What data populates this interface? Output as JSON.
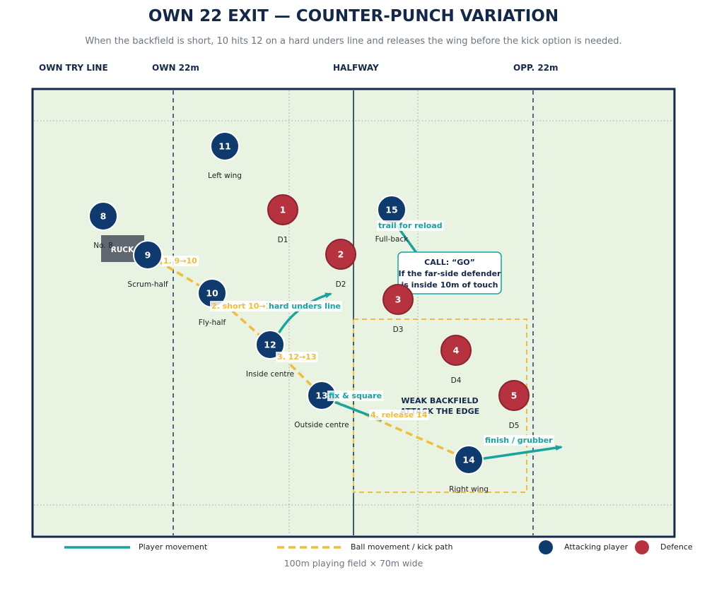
{
  "title": "OWN 22 EXIT — COUNTER-PUNCH VARIATION",
  "subtitle": "When the backfield is short, 10 hits 12 on a hard unders line and releases the wing before the kick option is needed.",
  "zones": {
    "own_try_line": "OWN TRY LINE",
    "own_22": "OWN 22m",
    "halfway": "HALFWAY",
    "opp_22": "OPP. 22m"
  },
  "ruck_label": "RUCK",
  "attackers": [
    {
      "number": "8",
      "role": "No. 8"
    },
    {
      "number": "9",
      "role": "Scrum-half"
    },
    {
      "number": "10",
      "role": "Fly-half"
    },
    {
      "number": "11",
      "role": "Left wing"
    },
    {
      "number": "12",
      "role": "Inside centre"
    },
    {
      "number": "13",
      "role": "Outside centre"
    },
    {
      "number": "14",
      "role": "Right wing"
    },
    {
      "number": "15",
      "role": "Full-back"
    }
  ],
  "defenders": [
    {
      "number": "1",
      "label": "D1"
    },
    {
      "number": "2",
      "label": "D2"
    },
    {
      "number": "3",
      "label": "D3"
    },
    {
      "number": "4",
      "label": "D4"
    },
    {
      "number": "5",
      "label": "D5"
    }
  ],
  "ball_steps": [
    "1. 9→10",
    "2. short 10→12",
    "3. 12→13",
    "4. release 14"
  ],
  "run_labels": {
    "trail": "trail for reload",
    "unders": "hard unders line",
    "fix": "fix & square",
    "finish": "finish / grubber"
  },
  "call_box": {
    "line1": "CALL: “GO”",
    "line2": "If the far-side defender",
    "line3": "is inside 10m of touch"
  },
  "target_zone": {
    "line1": "WEAK BACKFIELD",
    "line2": "ATTACK THE EDGE"
  },
  "legend": {
    "player_movement": "Player movement",
    "ball_movement": "Ball movement / kick path",
    "attacking_player": "Attacking player",
    "defence": "Defence"
  },
  "footnote": "100m playing field × 70m wide",
  "colors": {
    "attack": "#0f3a6e",
    "defence": "#b5323e",
    "movement": "#17a3a0",
    "ball": "#f0bd3c",
    "field": "#e8f3e1",
    "frame": "#14284b"
  }
}
